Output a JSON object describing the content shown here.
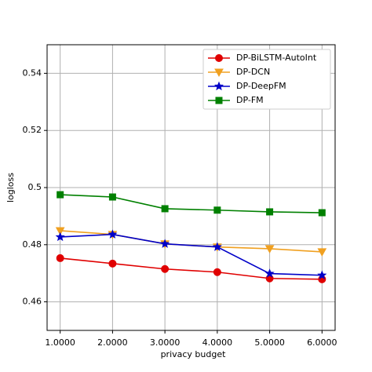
{
  "chart_data": {
    "type": "line",
    "x_label": "privacy budget",
    "y_label": "logloss",
    "x": [
      1,
      2,
      3,
      4,
      5,
      6
    ],
    "series": [
      {
        "name": "DP-BiLSTM-AutoInt",
        "color": "#e00000",
        "marker": "circle",
        "values": [
          0.4753,
          0.4734,
          0.4715,
          0.4704,
          0.4682,
          0.4679
        ]
      },
      {
        "name": "DP-DCN",
        "color": "#f0a020",
        "marker": "triangle-down",
        "values": [
          0.4849,
          0.4836,
          0.4803,
          0.4792,
          0.4786,
          0.4775
        ]
      },
      {
        "name": "DP-DeepFM",
        "color": "#0000c8",
        "marker": "star",
        "values": [
          0.4827,
          0.4836,
          0.4803,
          0.4792,
          0.4699,
          0.4693
        ]
      },
      {
        "name": "DP-FM",
        "color": "#008000",
        "marker": "square",
        "values": [
          0.4975,
          0.4967,
          0.4926,
          0.4921,
          0.4915,
          0.4912
        ]
      }
    ],
    "xlim": [
      0.75,
      6.25
    ],
    "xticks": [
      {
        "value": 1,
        "label": "1.0000"
      },
      {
        "value": 2,
        "label": "2.0000"
      },
      {
        "value": 3,
        "label": "3.0000"
      },
      {
        "value": 4,
        "label": "4.0000"
      },
      {
        "value": 5,
        "label": "5.0000"
      },
      {
        "value": 6,
        "label": "6.0000"
      }
    ],
    "ylim": [
      0.45,
      0.55
    ],
    "yticks": [
      0.46,
      0.48,
      0.5,
      0.52,
      0.54
    ],
    "grid": true,
    "legend": "upper-right"
  }
}
